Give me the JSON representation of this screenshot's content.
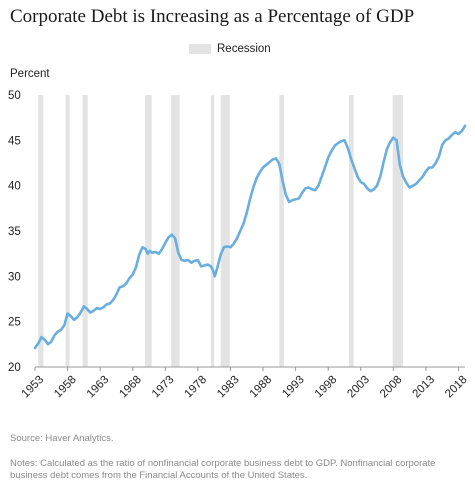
{
  "chart_data": {
    "type": "line",
    "title": "Corporate Debt is Increasing as a Percentage of GDP",
    "ylabel": "Percent",
    "xlabel": "",
    "ylim": [
      20,
      50
    ],
    "yticks": [
      20,
      25,
      30,
      35,
      40,
      45,
      50
    ],
    "xlim": [
      1953,
      2019
    ],
    "xticks": [
      1953,
      1958,
      1963,
      1968,
      1973,
      1978,
      1983,
      1988,
      1993,
      1998,
      2003,
      2008,
      2013,
      2018
    ],
    "legend": {
      "position": "top-center",
      "entries": [
        "Recession"
      ]
    },
    "grid": false,
    "colors": {
      "line": "#6aaedf",
      "recession": "#e3e3e3",
      "axis": "#999999"
    },
    "recessions": [
      [
        1953.5,
        1954.3
      ],
      [
        1957.7,
        1958.3
      ],
      [
        1960.3,
        1961.1
      ],
      [
        1969.9,
        1970.9
      ],
      [
        1973.9,
        1975.2
      ],
      [
        1980.0,
        1980.5
      ],
      [
        1981.5,
        1982.9
      ],
      [
        1990.5,
        1991.2
      ],
      [
        2001.2,
        2001.9
      ],
      [
        2007.9,
        2009.5
      ]
    ],
    "series": [
      {
        "name": "",
        "x": [
          1953.0,
          1953.5,
          1954.0,
          1954.5,
          1955.0,
          1955.5,
          1956.0,
          1956.5,
          1957.0,
          1957.5,
          1958.0,
          1958.5,
          1959.0,
          1959.5,
          1960.0,
          1960.5,
          1961.0,
          1961.5,
          1962.0,
          1962.5,
          1963.0,
          1963.5,
          1964.0,
          1964.5,
          1965.0,
          1965.5,
          1966.0,
          1966.5,
          1967.0,
          1967.5,
          1968.0,
          1968.5,
          1969.0,
          1969.5,
          1970.0,
          1970.3,
          1970.6,
          1971.0,
          1971.5,
          1972.0,
          1972.5,
          1973.0,
          1973.5,
          1974.0,
          1974.5,
          1975.0,
          1975.5,
          1976.0,
          1976.5,
          1977.0,
          1977.5,
          1978.0,
          1978.5,
          1979.0,
          1979.5,
          1980.0,
          1980.3,
          1980.6,
          1981.0,
          1981.5,
          1982.0,
          1982.5,
          1983.0,
          1983.5,
          1984.0,
          1984.5,
          1985.0,
          1985.5,
          1986.0,
          1986.5,
          1987.0,
          1987.5,
          1988.0,
          1988.5,
          1989.0,
          1989.5,
          1990.0,
          1990.5,
          1991.0,
          1991.5,
          1992.0,
          1992.5,
          1993.0,
          1993.5,
          1994.0,
          1994.5,
          1995.0,
          1995.5,
          1996.0,
          1996.5,
          1997.0,
          1997.5,
          1998.0,
          1998.5,
          1999.0,
          1999.5,
          2000.0,
          2000.5,
          2001.0,
          2001.5,
          2002.0,
          2002.5,
          2003.0,
          2003.5,
          2004.0,
          2004.5,
          2005.0,
          2005.5,
          2006.0,
          2006.5,
          2007.0,
          2007.5,
          2008.0,
          2008.5,
          2009.0,
          2009.5,
          2010.0,
          2010.5,
          2011.0,
          2011.5,
          2012.0,
          2012.5,
          2013.0,
          2013.5,
          2014.0,
          2014.5,
          2015.0,
          2015.5,
          2016.0,
          2016.5,
          2017.0,
          2017.5,
          2018.0,
          2018.5,
          2019.0
        ],
        "values": [
          22.1,
          22.6,
          23.3,
          23.0,
          22.5,
          22.8,
          23.5,
          23.9,
          24.1,
          24.6,
          25.9,
          25.6,
          25.2,
          25.5,
          26.0,
          26.7,
          26.4,
          26.0,
          26.2,
          26.5,
          26.4,
          26.6,
          26.9,
          27.0,
          27.4,
          28.0,
          28.8,
          28.9,
          29.2,
          29.8,
          30.2,
          31.0,
          32.4,
          33.2,
          33.0,
          32.5,
          32.8,
          32.6,
          32.7,
          32.5,
          33.0,
          33.7,
          34.3,
          34.6,
          34.2,
          32.6,
          31.8,
          31.7,
          31.8,
          31.5,
          31.7,
          31.8,
          31.1,
          31.2,
          31.3,
          31.1,
          30.7,
          30.0,
          31.0,
          32.4,
          33.2,
          33.3,
          33.2,
          33.6,
          34.2,
          35.0,
          35.8,
          37.0,
          38.5,
          39.8,
          40.8,
          41.5,
          42.0,
          42.3,
          42.6,
          42.9,
          43.0,
          42.4,
          40.5,
          39.0,
          38.2,
          38.4,
          38.5,
          38.6,
          39.2,
          39.7,
          39.8,
          39.6,
          39.5,
          40.0,
          41.0,
          42.0,
          43.1,
          43.8,
          44.4,
          44.7,
          44.9,
          45.0,
          44.2,
          43.0,
          42.0,
          41.0,
          40.4,
          40.2,
          39.7,
          39.4,
          39.6,
          40.0,
          41.0,
          42.6,
          44.0,
          44.8,
          45.3,
          45.0,
          42.3,
          41.0,
          40.3,
          39.8,
          40.0,
          40.2,
          40.6,
          41.0,
          41.6,
          42.0,
          42.0,
          42.5,
          43.2,
          44.5,
          45.0,
          45.2,
          45.6,
          45.9,
          45.7,
          46.0,
          46.6
        ]
      }
    ]
  },
  "footer": {
    "source": "Source: Haver Analytics.",
    "notes": "Notes: Calculated as the ratio of nonfinancial corporate business debt to GDP. Nonfinancial corporate business debt comes from the Financial Accounts of the United States."
  }
}
